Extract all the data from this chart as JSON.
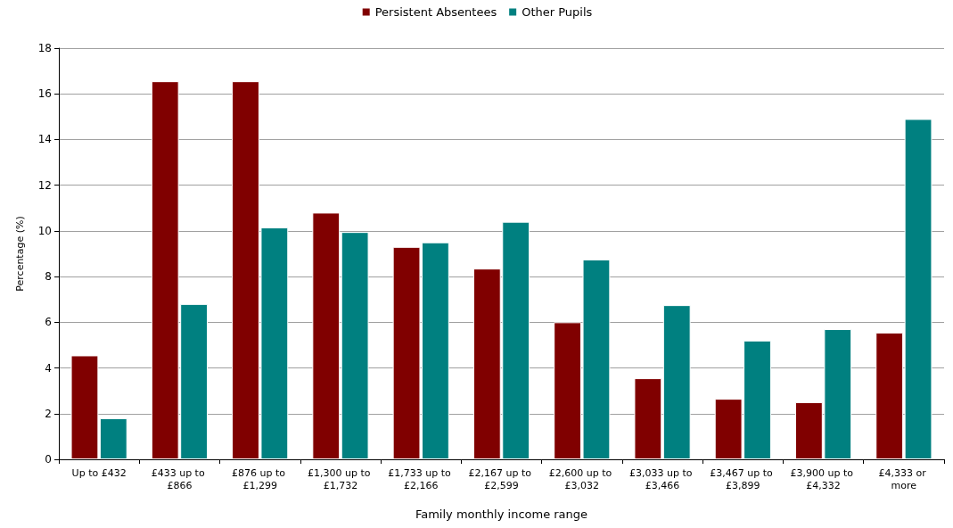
{
  "chart_data": {
    "type": "bar",
    "xlabel": "Family monthly income range",
    "ylabel": "Percentage (%)",
    "categories": [
      "Up to £432",
      "£433 up to £866",
      "£876 up to £1,299",
      "£1,300 up to £1,732",
      "£1,733 up to £2,166",
      "£2,167 up to £2,599",
      "£2,600 up to £3,032",
      "£3,033 up to £3,466",
      "£3,467 up to £3,899",
      "£3,900 up to £4,332",
      "£4,333 or more"
    ],
    "series": [
      {
        "name": "Persistent Absentees",
        "color": "#800000",
        "values": [
          4.55,
          16.55,
          16.55,
          10.8,
          9.3,
          8.35,
          6.0,
          3.55,
          2.65,
          2.5,
          5.55
        ]
      },
      {
        "name": "Other Pupils",
        "color": "#008080",
        "values": [
          1.8,
          6.8,
          10.15,
          9.95,
          9.5,
          10.4,
          8.75,
          6.75,
          5.2,
          5.7,
          14.9
        ]
      }
    ],
    "ylim": [
      0,
      18
    ],
    "yticks": [
      0,
      2,
      4,
      6,
      8,
      10,
      12,
      14,
      16,
      18
    ],
    "grid": "y",
    "legend": "top"
  }
}
